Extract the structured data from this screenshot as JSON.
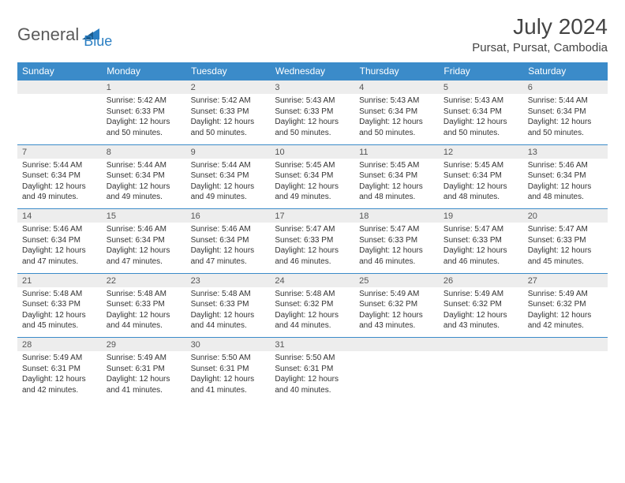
{
  "logo": {
    "text1": "General",
    "text2": "Blue"
  },
  "title": "July 2024",
  "location": "Pursat, Pursat, Cambodia",
  "colors": {
    "header_bg": "#3b8bc9",
    "header_text": "#ffffff",
    "daynum_bg": "#ededed",
    "border": "#3b8bc9",
    "logo_gray": "#5a5a5a",
    "logo_blue": "#2b7fc3"
  },
  "weekdays": [
    "Sunday",
    "Monday",
    "Tuesday",
    "Wednesday",
    "Thursday",
    "Friday",
    "Saturday"
  ],
  "weeks": [
    {
      "nums": [
        "",
        "1",
        "2",
        "3",
        "4",
        "5",
        "6"
      ],
      "cells": [
        null,
        {
          "sunrise": "5:42 AM",
          "sunset": "6:33 PM",
          "daylight": "12 hours and 50 minutes."
        },
        {
          "sunrise": "5:42 AM",
          "sunset": "6:33 PM",
          "daylight": "12 hours and 50 minutes."
        },
        {
          "sunrise": "5:43 AM",
          "sunset": "6:33 PM",
          "daylight": "12 hours and 50 minutes."
        },
        {
          "sunrise": "5:43 AM",
          "sunset": "6:34 PM",
          "daylight": "12 hours and 50 minutes."
        },
        {
          "sunrise": "5:43 AM",
          "sunset": "6:34 PM",
          "daylight": "12 hours and 50 minutes."
        },
        {
          "sunrise": "5:44 AM",
          "sunset": "6:34 PM",
          "daylight": "12 hours and 50 minutes."
        }
      ]
    },
    {
      "nums": [
        "7",
        "8",
        "9",
        "10",
        "11",
        "12",
        "13"
      ],
      "cells": [
        {
          "sunrise": "5:44 AM",
          "sunset": "6:34 PM",
          "daylight": "12 hours and 49 minutes."
        },
        {
          "sunrise": "5:44 AM",
          "sunset": "6:34 PM",
          "daylight": "12 hours and 49 minutes."
        },
        {
          "sunrise": "5:44 AM",
          "sunset": "6:34 PM",
          "daylight": "12 hours and 49 minutes."
        },
        {
          "sunrise": "5:45 AM",
          "sunset": "6:34 PM",
          "daylight": "12 hours and 49 minutes."
        },
        {
          "sunrise": "5:45 AM",
          "sunset": "6:34 PM",
          "daylight": "12 hours and 48 minutes."
        },
        {
          "sunrise": "5:45 AM",
          "sunset": "6:34 PM",
          "daylight": "12 hours and 48 minutes."
        },
        {
          "sunrise": "5:46 AM",
          "sunset": "6:34 PM",
          "daylight": "12 hours and 48 minutes."
        }
      ]
    },
    {
      "nums": [
        "14",
        "15",
        "16",
        "17",
        "18",
        "19",
        "20"
      ],
      "cells": [
        {
          "sunrise": "5:46 AM",
          "sunset": "6:34 PM",
          "daylight": "12 hours and 47 minutes."
        },
        {
          "sunrise": "5:46 AM",
          "sunset": "6:34 PM",
          "daylight": "12 hours and 47 minutes."
        },
        {
          "sunrise": "5:46 AM",
          "sunset": "6:34 PM",
          "daylight": "12 hours and 47 minutes."
        },
        {
          "sunrise": "5:47 AM",
          "sunset": "6:33 PM",
          "daylight": "12 hours and 46 minutes."
        },
        {
          "sunrise": "5:47 AM",
          "sunset": "6:33 PM",
          "daylight": "12 hours and 46 minutes."
        },
        {
          "sunrise": "5:47 AM",
          "sunset": "6:33 PM",
          "daylight": "12 hours and 46 minutes."
        },
        {
          "sunrise": "5:47 AM",
          "sunset": "6:33 PM",
          "daylight": "12 hours and 45 minutes."
        }
      ]
    },
    {
      "nums": [
        "21",
        "22",
        "23",
        "24",
        "25",
        "26",
        "27"
      ],
      "cells": [
        {
          "sunrise": "5:48 AM",
          "sunset": "6:33 PM",
          "daylight": "12 hours and 45 minutes."
        },
        {
          "sunrise": "5:48 AM",
          "sunset": "6:33 PM",
          "daylight": "12 hours and 44 minutes."
        },
        {
          "sunrise": "5:48 AM",
          "sunset": "6:33 PM",
          "daylight": "12 hours and 44 minutes."
        },
        {
          "sunrise": "5:48 AM",
          "sunset": "6:32 PM",
          "daylight": "12 hours and 44 minutes."
        },
        {
          "sunrise": "5:49 AM",
          "sunset": "6:32 PM",
          "daylight": "12 hours and 43 minutes."
        },
        {
          "sunrise": "5:49 AM",
          "sunset": "6:32 PM",
          "daylight": "12 hours and 43 minutes."
        },
        {
          "sunrise": "5:49 AM",
          "sunset": "6:32 PM",
          "daylight": "12 hours and 42 minutes."
        }
      ]
    },
    {
      "nums": [
        "28",
        "29",
        "30",
        "31",
        "",
        "",
        ""
      ],
      "cells": [
        {
          "sunrise": "5:49 AM",
          "sunset": "6:31 PM",
          "daylight": "12 hours and 42 minutes."
        },
        {
          "sunrise": "5:49 AM",
          "sunset": "6:31 PM",
          "daylight": "12 hours and 41 minutes."
        },
        {
          "sunrise": "5:50 AM",
          "sunset": "6:31 PM",
          "daylight": "12 hours and 41 minutes."
        },
        {
          "sunrise": "5:50 AM",
          "sunset": "6:31 PM",
          "daylight": "12 hours and 40 minutes."
        },
        null,
        null,
        null
      ]
    }
  ],
  "labels": {
    "sunrise": "Sunrise:",
    "sunset": "Sunset:",
    "daylight": "Daylight:"
  }
}
